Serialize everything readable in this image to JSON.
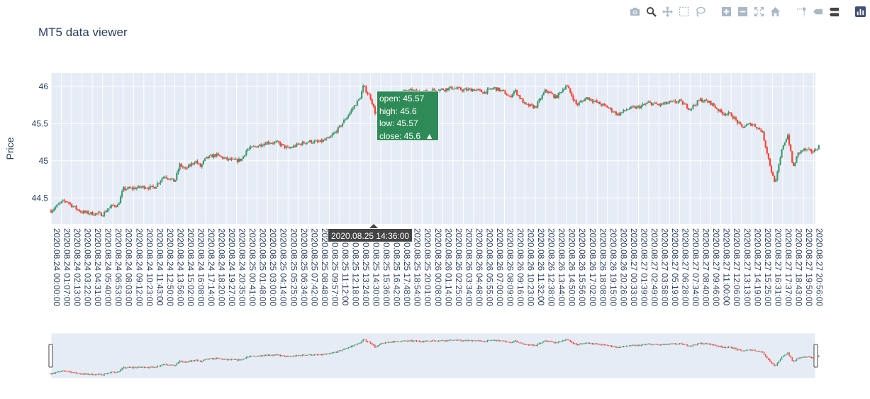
{
  "title": "MT5 data viewer",
  "modebar": {
    "icons": [
      "camera-icon",
      "zoom-icon",
      "pan-icon",
      "box-select-icon",
      "lasso-select-icon",
      "zoom-in-icon",
      "zoom-out-icon",
      "autoscale-icon",
      "reset-axes-icon",
      "spike-lines-icon",
      "hover-closest-icon",
      "hover-compare-icon",
      "plotly-logo-icon"
    ]
  },
  "chart_data": {
    "type": "candlestick",
    "title": "MT5 data viewer",
    "ylabel": "Price",
    "ylim": [
      44.15,
      46.18
    ],
    "yticks": [
      44.5,
      45,
      45.5,
      46
    ],
    "ytick_labels": [
      "44.5",
      "45",
      "45.5",
      "46"
    ],
    "grid": true,
    "rangeslider": true,
    "colors": {
      "increasing": "#3d9970",
      "decreasing": "#ff4136",
      "plot_bg": "#e5ecf6",
      "tooltip_bg": "#2e8b57"
    },
    "xtick_labels": [
      "2020.08.24 00:00:00",
      "2020.08.24 01:07:00",
      "2020.08.24 02:13:00",
      "2020.08.24 03:22:00",
      "2020.08.24 04:31:00",
      "2020.08.24 05:40:00",
      "2020.08.24 06:53:00",
      "2020.08.24 08:03:00",
      "2020.08.24 09:12:00",
      "2020.08.24 10:23:00",
      "2020.08.24 11:43:00",
      "2020.08.24 12:50:00",
      "2020.08.24 13:56:00",
      "2020.08.24 15:02:00",
      "2020.08.24 16:08:00",
      "2020.08.24 17:14:00",
      "2020.08.24 18:20:00",
      "2020.08.24 19:27:00",
      "2020.08.24 20:35:00",
      "2020.08.25 00:41:00",
      "2020.08.25 01:48:00",
      "2020.08.25 03:00:00",
      "2020.08.25 04:14:00",
      "2020.08.25 05:25:00",
      "2020.08.25 06:34:00",
      "2020.08.25 07:42:00",
      "2020.08.25 08:48:00",
      "2020.08.25 09:57:00",
      "2020.08.25 11:12:00",
      "2020.08.25 12:18:00",
      "2020.08.25 13:24:00",
      "2020.08.25 14:30:00",
      "2020.08.25 15:36:00",
      "2020.08.25 16:42:00",
      "2020.08.25 17:48:00",
      "2020.08.25 18:54:00",
      "2020.08.25 20:01:00",
      "2020.08.26 00:08:00",
      "2020.08.26 01:14:00",
      "2020.08.26 02:25:00",
      "2020.08.26 03:34:00",
      "2020.08.26 04:48:00",
      "2020.08.26 05:55:00",
      "2020.08.26 07:00:00",
      "2020.08.26 08:09:00",
      "2020.08.26 09:16:00",
      "2020.08.26 10:23:00",
      "2020.08.26 11:32:00",
      "2020.08.26 12:38:00",
      "2020.08.26 13:44:00",
      "2020.08.26 14:50:00",
      "2020.08.26 15:56:00",
      "2020.08.26 17:02:00",
      "2020.08.26 18:08:00",
      "2020.08.26 19:15:00",
      "2020.08.26 20:26:00",
      "2020.08.27 00:33:00",
      "2020.08.27 01:39:00",
      "2020.08.27 02:49:00",
      "2020.08.27 03:58:00",
      "2020.08.27 05:19:00",
      "2020.08.27 06:28:00",
      "2020.08.27 07:34:00",
      "2020.08.27 08:40:00",
      "2020.08.27 09:46:00",
      "2020.08.27 11:00:00",
      "2020.08.27 12:06:00",
      "2020.08.27 13:13:00",
      "2020.08.27 14:19:00",
      "2020.08.27 15:25:00",
      "2020.08.27 16:31:00",
      "2020.08.27 17:37:00",
      "2020.08.27 18:43:00",
      "2020.08.27 19:50:00",
      "2020.08.27 20:56:00"
    ],
    "price_path": [
      [
        0,
        44.33
      ],
      [
        1,
        44.44
      ],
      [
        1.5,
        44.46
      ],
      [
        2,
        44.4
      ],
      [
        2.5,
        44.35
      ],
      [
        3,
        44.31
      ],
      [
        4,
        44.29
      ],
      [
        5,
        44.28
      ],
      [
        5.5,
        44.35
      ],
      [
        6,
        44.4
      ],
      [
        6.5,
        44.4
      ],
      [
        7,
        44.62
      ],
      [
        8,
        44.63
      ],
      [
        9,
        44.65
      ],
      [
        9.5,
        44.64
      ],
      [
        10,
        44.64
      ],
      [
        11,
        44.8
      ],
      [
        12,
        44.72
      ],
      [
        12.5,
        44.95
      ],
      [
        13,
        44.88
      ],
      [
        14,
        45.0
      ],
      [
        14.5,
        44.92
      ],
      [
        15,
        45.03
      ],
      [
        16,
        45.08
      ],
      [
        17,
        45.02
      ],
      [
        18,
        45.0
      ],
      [
        18.5,
        45.02
      ],
      [
        19,
        45.15
      ],
      [
        20,
        45.2
      ],
      [
        21,
        45.25
      ],
      [
        22,
        45.24
      ],
      [
        23,
        45.16
      ],
      [
        24,
        45.22
      ],
      [
        25,
        45.26
      ],
      [
        26,
        45.25
      ],
      [
        27,
        45.3
      ],
      [
        28,
        45.45
      ],
      [
        29,
        45.65
      ],
      [
        30,
        45.85
      ],
      [
        30.3,
        46.0
      ],
      [
        31,
        45.85
      ],
      [
        31.5,
        45.62
      ],
      [
        32,
        45.8
      ],
      [
        33,
        45.9
      ],
      [
        34,
        45.93
      ],
      [
        35,
        45.94
      ],
      [
        36,
        45.92
      ],
      [
        37,
        45.95
      ],
      [
        38,
        45.96
      ],
      [
        39,
        45.98
      ],
      [
        40,
        45.95
      ],
      [
        41,
        45.96
      ],
      [
        42,
        45.92
      ],
      [
        43,
        45.98
      ],
      [
        44,
        45.92
      ],
      [
        44.5,
        45.85
      ],
      [
        45,
        45.95
      ],
      [
        46,
        45.75
      ],
      [
        47,
        45.72
      ],
      [
        48,
        45.95
      ],
      [
        49,
        45.85
      ],
      [
        50,
        46.02
      ],
      [
        51,
        45.75
      ],
      [
        52,
        45.85
      ],
      [
        53,
        45.78
      ],
      [
        54,
        45.72
      ],
      [
        55,
        45.62
      ],
      [
        56,
        45.7
      ],
      [
        57,
        45.72
      ],
      [
        58,
        45.78
      ],
      [
        59,
        45.75
      ],
      [
        60,
        45.78
      ],
      [
        61,
        45.8
      ],
      [
        62,
        45.7
      ],
      [
        63,
        45.82
      ],
      [
        64,
        45.78
      ],
      [
        65,
        45.65
      ],
      [
        66,
        45.62
      ],
      [
        67,
        45.45
      ],
      [
        68,
        45.5
      ],
      [
        69,
        45.4
      ],
      [
        69.5,
        45.1
      ],
      [
        70,
        44.8
      ],
      [
        70.3,
        44.7
      ],
      [
        71,
        45.2
      ],
      [
        71.5,
        45.35
      ],
      [
        72,
        44.9
      ],
      [
        72.5,
        45.1
      ],
      [
        73,
        45.15
      ],
      [
        74,
        45.12
      ],
      [
        74.5,
        45.2
      ]
    ],
    "hover": {
      "x_label": "2020.08.25 14:36:00",
      "open": "open: 45.57",
      "high": "high: 45.6",
      "low": "low: 45.57",
      "close": "close: 45.6",
      "direction": "▲"
    }
  }
}
